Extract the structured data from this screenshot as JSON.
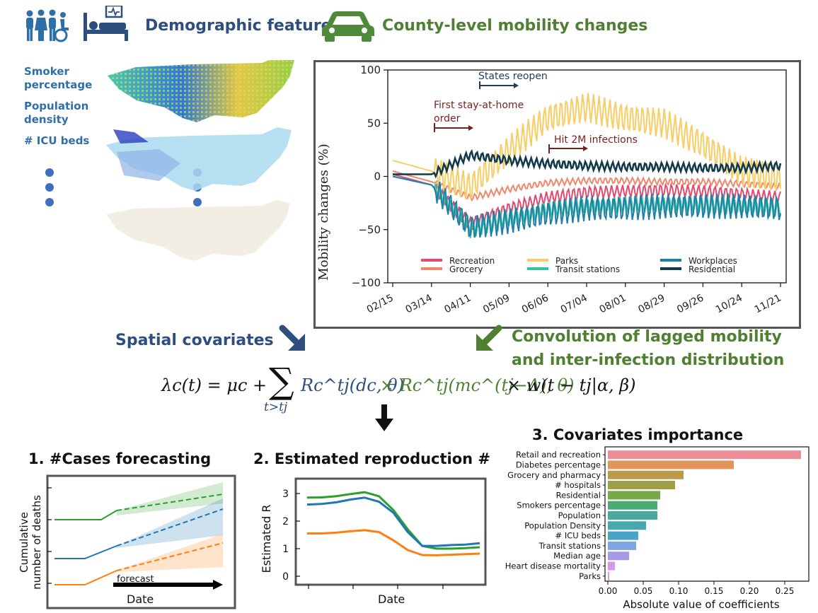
{
  "header": {
    "demographic_title": "Demographic features",
    "mobility_title": "County-level mobility changes",
    "icons": [
      "people-icon",
      "hospital-bed-icon",
      "car-icon"
    ]
  },
  "map_labels": [
    "Smoker percentage",
    "Population density",
    "# ICU beds"
  ],
  "mobility_chart": {
    "ylabel": "Mobility changes (%)",
    "yticks": [
      "100",
      "50",
      "0",
      "−50",
      "−100"
    ],
    "xticks": [
      "02/15",
      "03/14",
      "04/11",
      "05/09",
      "06/06",
      "07/04",
      "08/01",
      "08/29",
      "09/26",
      "10/24",
      "11/21"
    ],
    "annotations": [
      "States reopen",
      "First stay-at-home order",
      "Hit 2M infections"
    ],
    "legend": [
      {
        "name": "Recreation",
        "color": "#e34a6f"
      },
      {
        "name": "Grocery",
        "color": "#f0876a"
      },
      {
        "name": "Parks",
        "color": "#f9cd66"
      },
      {
        "name": "Transit stations",
        "color": "#2ec4a0"
      },
      {
        "name": "Workplaces",
        "color": "#1f7fa8"
      },
      {
        "name": "Residential",
        "color": "#123a4a"
      }
    ]
  },
  "arrows": {
    "spatial_label": "Spatial covariates",
    "convolution_label": "Convolution of lagged mobility and inter-infection distribution"
  },
  "formula": {
    "lhs": "λc(t) = μc +",
    "sum_sub": "t>tj",
    "term1": "Rc^tj(dc, θ)",
    "term2": "× Rc^tj(mc^(tj−Δ), θ)",
    "term3": "× w(t − tj|α, β)"
  },
  "panel1": {
    "title": "1. #Cases forecasting",
    "ylabel_line1": "Cumulative",
    "ylabel_line2": "number of deaths",
    "xlabel": "Date",
    "forecast_label": "forecast"
  },
  "panel2": {
    "title": "2. Estimated reproduction #",
    "ylabel": "Estimated R",
    "xlabel": "Date",
    "yticks": [
      "3",
      "2",
      "1",
      "0"
    ]
  },
  "panel3": {
    "title": "3. Covariates importance",
    "xlabel": "Absolute value of coefficients",
    "xticks": [
      "0.00",
      "0.05",
      "0.10",
      "0.15",
      "0.20",
      "0.25"
    ]
  },
  "chart_data": [
    {
      "type": "line",
      "title": "",
      "ylabel": "Mobility changes (%)",
      "ylim": [
        -100,
        100
      ],
      "x": [
        "02/15",
        "03/14",
        "04/11",
        "05/09",
        "06/06",
        "07/04",
        "08/01",
        "08/29",
        "09/26",
        "10/24",
        "11/21"
      ],
      "series": [
        {
          "name": "Recreation",
          "values": [
            2,
            -8,
            -45,
            -30,
            -20,
            -15,
            -14,
            -13,
            -14,
            -17,
            -20
          ]
        },
        {
          "name": "Grocery",
          "values": [
            5,
            -5,
            -20,
            -12,
            -6,
            -4,
            -4,
            -5,
            -5,
            -7,
            -10
          ]
        },
        {
          "name": "Parks",
          "values": [
            15,
            5,
            -10,
            25,
            55,
            65,
            55,
            50,
            30,
            5,
            -2
          ]
        },
        {
          "name": "Transit stations",
          "values": [
            0,
            -8,
            -50,
            -40,
            -32,
            -28,
            -27,
            -26,
            -27,
            -28,
            -30
          ]
        },
        {
          "name": "Workplaces",
          "values": [
            0,
            -8,
            -48,
            -42,
            -35,
            -30,
            -30,
            -28,
            -28,
            -28,
            -30
          ]
        },
        {
          "name": "Residential",
          "values": [
            2,
            2,
            20,
            15,
            12,
            10,
            9,
            9,
            8,
            8,
            10
          ]
        }
      ]
    },
    {
      "type": "bar",
      "title": "3. Covariates importance",
      "xlabel": "Absolute value of coefficients",
      "xlim": [
        0,
        0.28
      ],
      "categories": [
        "Retail and recreation",
        "Diabetes percentage",
        "Grocery and pharmacy",
        "# hospitals",
        "Residential",
        "Smokers percentage",
        "Population",
        "Population Density",
        "# ICU beds",
        "Transit stations",
        "Median age",
        "Heart disease mortality",
        "Parks"
      ],
      "values": [
        0.273,
        0.178,
        0.107,
        0.095,
        0.074,
        0.07,
        0.07,
        0.054,
        0.043,
        0.04,
        0.03,
        0.01,
        0.002
      ],
      "colors": [
        "#ec8c97",
        "#e3935c",
        "#bd9a4b",
        "#9f9f45",
        "#79a848",
        "#4cab74",
        "#47aa9a",
        "#49a8ae",
        "#4aa4c5",
        "#7ea6e3",
        "#a899e6",
        "#d59ae3",
        "#ee93cc"
      ]
    },
    {
      "type": "line",
      "title": "2. Estimated reproduction #",
      "ylabel": "Estimated R",
      "ylim": [
        0,
        3.3
      ],
      "series": [
        {
          "color": "#2ca02c",
          "values": [
            2.85,
            2.86,
            2.9,
            2.98,
            3.05,
            2.9,
            2.4,
            1.7,
            1.1,
            1.0,
            1.0,
            1.02,
            1.05
          ]
        },
        {
          "color": "#1f77b4",
          "values": [
            2.6,
            2.62,
            2.68,
            2.78,
            2.85,
            2.7,
            2.3,
            1.6,
            1.1,
            1.1,
            1.13,
            1.15,
            1.2
          ]
        },
        {
          "color": "#ff7f0e",
          "values": [
            1.55,
            1.55,
            1.58,
            1.63,
            1.67,
            1.6,
            1.3,
            0.95,
            0.77,
            0.76,
            0.78,
            0.8,
            0.82
          ]
        }
      ]
    }
  ]
}
